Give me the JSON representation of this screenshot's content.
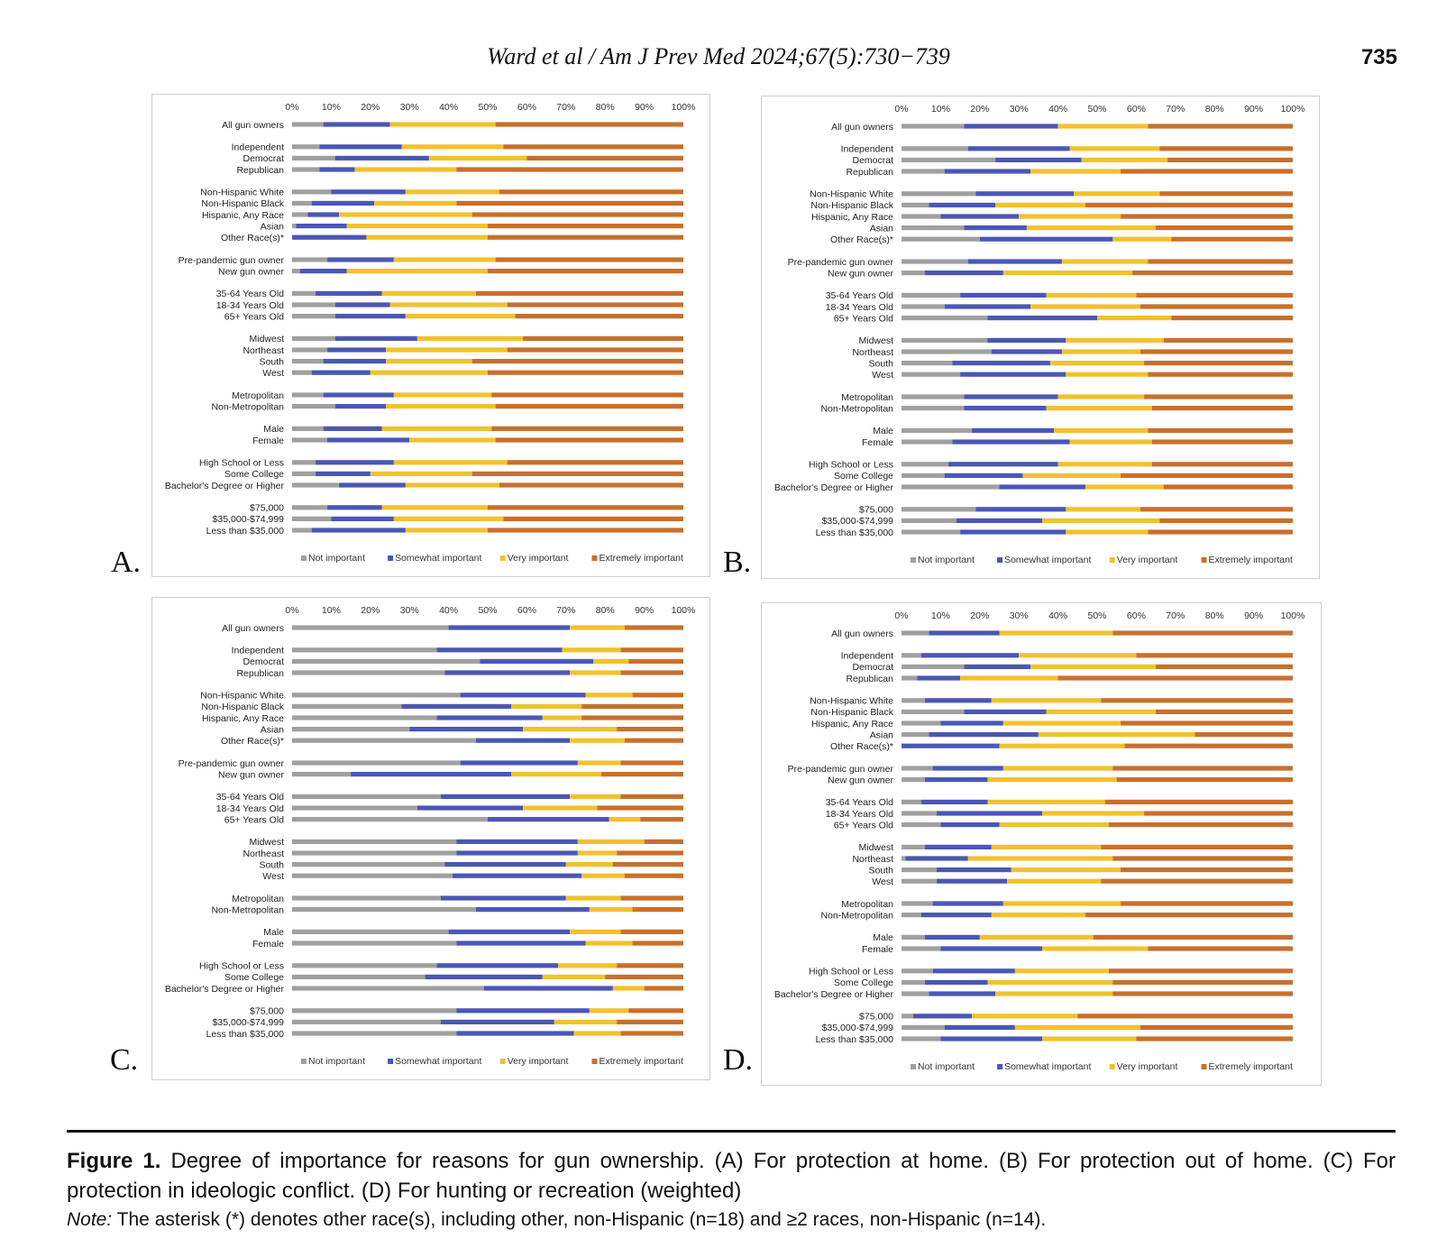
{
  "header": {
    "running_head": "Ward et al / Am J Prev Med  2024;67(5):730−739",
    "page_number": "735"
  },
  "caption": {
    "figure_label": "Figure 1.",
    "text": "Degree of importance for reasons for gun ownership. (A) For protection at home. (B) For protection out of home. (C) For protection in ideologic conflict. (D) For hunting or recreation (weighted)",
    "note_label": "Note:",
    "note_text": "The asterisk (*) denotes other race(s), including other, non-Hispanic (n=18) and ≥2 races, non-Hispanic (n=14)."
  },
  "colors": {
    "not_important": "#a0a0a0",
    "somewhat_important": "#4a57b5",
    "very_important": "#f2c12e",
    "extremely_important": "#c8702c"
  },
  "chart_data": [
    {
      "type": "bar",
      "stacked": "horizontal-100",
      "panel_label": "A.",
      "ticks": [
        "0%",
        "10%",
        "20%",
        "30%",
        "40%",
        "50%",
        "60%",
        "70%",
        "80%",
        "90%",
        "100%"
      ],
      "legend": [
        "Not important",
        "Somewhat important",
        "Very important",
        "Extremely important"
      ],
      "groups": [
        [
          "All gun owners"
        ],
        [
          "Independent",
          "Democrat",
          "Republican"
        ],
        [
          "Non-Hispanic White",
          "Non-Hispanic Black",
          "Hispanic, Any Race",
          "Asian",
          "Other Race(s)*"
        ],
        [
          "Pre-pandemic gun owner",
          "New gun owner"
        ],
        [
          "35-64 Years Old",
          "18-34 Years Old",
          "65+ Years Old"
        ],
        [
          "Midwest",
          "Northeast",
          "South",
          "West"
        ],
        [
          "Metropolitan",
          "Non-Metropolitan"
        ],
        [
          "Male",
          "Female"
        ],
        [
          "High School or Less",
          "Some College",
          "Bachelor's Degree or Higher"
        ],
        [
          "$75,000",
          "$35,000-$74,999",
          "Less than $35,000"
        ]
      ],
      "values": [
        [
          8,
          17,
          27,
          48
        ],
        [
          7,
          21,
          26,
          46
        ],
        [
          11,
          24,
          25,
          40
        ],
        [
          7,
          9,
          26,
          58
        ],
        [
          10,
          19,
          24,
          47
        ],
        [
          5,
          16,
          21,
          58
        ],
        [
          4,
          8,
          34,
          54
        ],
        [
          1,
          13,
          36,
          50
        ],
        [
          0,
          19,
          31,
          50
        ],
        [
          9,
          17,
          26,
          48
        ],
        [
          2,
          12,
          36,
          50
        ],
        [
          6,
          17,
          24,
          53
        ],
        [
          11,
          14,
          30,
          45
        ],
        [
          11,
          18,
          28,
          43
        ],
        [
          11,
          21,
          27,
          41
        ],
        [
          9,
          15,
          31,
          45
        ],
        [
          8,
          16,
          22,
          54
        ],
        [
          5,
          15,
          30,
          50
        ],
        [
          8,
          18,
          25,
          49
        ],
        [
          11,
          13,
          28,
          48
        ],
        [
          8,
          15,
          28,
          49
        ],
        [
          9,
          21,
          22,
          48
        ],
        [
          6,
          20,
          29,
          45
        ],
        [
          6,
          14,
          26,
          54
        ],
        [
          12,
          17,
          24,
          47
        ],
        [
          9,
          14,
          27,
          50
        ],
        [
          10,
          16,
          28,
          46
        ],
        [
          5,
          24,
          21,
          50
        ]
      ]
    },
    {
      "type": "bar",
      "stacked": "horizontal-100",
      "panel_label": "B.",
      "ticks": [
        "0%",
        "10%",
        "20%",
        "30%",
        "40%",
        "50%",
        "60%",
        "70%",
        "80%",
        "90%",
        "100%"
      ],
      "legend": [
        "Not important",
        "Somewhat important",
        "Very important",
        "Extremely important"
      ],
      "groups": [
        [
          "All gun owners"
        ],
        [
          "Independent",
          "Democrat",
          "Republican"
        ],
        [
          "Non-Hispanic White",
          "Non-Hispanic Black",
          "Hispanic, Any Race",
          "Asian",
          "Other Race(s)*"
        ],
        [
          "Pre-pandemic gun owner",
          "New gun owner"
        ],
        [
          "35-64 Years Old",
          "18-34 Years Old",
          "65+ Years Old"
        ],
        [
          "Midwest",
          "Northeast",
          "South",
          "West"
        ],
        [
          "Metropolitan",
          "Non-Metropolitan"
        ],
        [
          "Male",
          "Female"
        ],
        [
          "High School or Less",
          "Some College",
          "Bachelor's Degree or Higher"
        ],
        [
          "$75,000",
          "$35,000-$74,999",
          "Less than $35,000"
        ]
      ],
      "values": [
        [
          16,
          24,
          23,
          37
        ],
        [
          17,
          26,
          23,
          34
        ],
        [
          24,
          22,
          22,
          32
        ],
        [
          11,
          22,
          23,
          44
        ],
        [
          19,
          25,
          22,
          34
        ],
        [
          7,
          17,
          23,
          53
        ],
        [
          10,
          20,
          26,
          44
        ],
        [
          16,
          16,
          33,
          35
        ],
        [
          20,
          34,
          15,
          31
        ],
        [
          17,
          24,
          22,
          37
        ],
        [
          6,
          20,
          33,
          41
        ],
        [
          15,
          22,
          23,
          40
        ],
        [
          11,
          22,
          28,
          39
        ],
        [
          22,
          28,
          19,
          31
        ],
        [
          22,
          20,
          25,
          33
        ],
        [
          23,
          18,
          20,
          39
        ],
        [
          13,
          25,
          24,
          38
        ],
        [
          15,
          27,
          21,
          37
        ],
        [
          16,
          24,
          22,
          38
        ],
        [
          16,
          21,
          27,
          36
        ],
        [
          18,
          21,
          24,
          37
        ],
        [
          13,
          30,
          21,
          36
        ],
        [
          12,
          28,
          24,
          36
        ],
        [
          11,
          20,
          25,
          44
        ],
        [
          25,
          22,
          20,
          33
        ],
        [
          19,
          23,
          19,
          39
        ],
        [
          14,
          22,
          30,
          34
        ],
        [
          15,
          27,
          21,
          37
        ]
      ]
    },
    {
      "type": "bar",
      "stacked": "horizontal-100",
      "panel_label": "C.",
      "ticks": [
        "0%",
        "10%",
        "20%",
        "30%",
        "40%",
        "50%",
        "60%",
        "70%",
        "80%",
        "90%",
        "100%"
      ],
      "legend": [
        "Not important",
        "Somewhat important",
        "Very important",
        "Extremely important"
      ],
      "groups": [
        [
          "All gun owners"
        ],
        [
          "Independent",
          "Democrat",
          "Republican"
        ],
        [
          "Non-Hispanic White",
          "Non-Hispanic Black",
          "Hispanic, Any Race",
          "Asian",
          "Other Race(s)*"
        ],
        [
          "Pre-pandemic gun owner",
          "New gun owner"
        ],
        [
          "35-64 Years Old",
          "18-34 Years Old",
          "65+ Years Old"
        ],
        [
          "Midwest",
          "Northeast",
          "South",
          "West"
        ],
        [
          "Metropolitan",
          "Non-Metropolitan"
        ],
        [
          "Male",
          "Female"
        ],
        [
          "High School or Less",
          "Some College",
          "Bachelor's Degree or Higher"
        ],
        [
          "$75,000",
          "$35,000-$74,999",
          "Less than $35,000"
        ]
      ],
      "values": [
        [
          40,
          31,
          14,
          15
        ],
        [
          37,
          32,
          15,
          16
        ],
        [
          48,
          29,
          9,
          14
        ],
        [
          39,
          32,
          13,
          16
        ],
        [
          43,
          32,
          12,
          13
        ],
        [
          28,
          28,
          18,
          26
        ],
        [
          37,
          27,
          10,
          26
        ],
        [
          30,
          29,
          24,
          17
        ],
        [
          47,
          24,
          14,
          15
        ],
        [
          43,
          30,
          11,
          16
        ],
        [
          15,
          41,
          23,
          21
        ],
        [
          38,
          33,
          13,
          16
        ],
        [
          32,
          27,
          19,
          22
        ],
        [
          50,
          31,
          8,
          11
        ],
        [
          42,
          31,
          17,
          10
        ],
        [
          42,
          31,
          10,
          17
        ],
        [
          39,
          31,
          12,
          18
        ],
        [
          41,
          33,
          11,
          15
        ],
        [
          38,
          32,
          14,
          16
        ],
        [
          47,
          29,
          11,
          13
        ],
        [
          40,
          31,
          13,
          16
        ],
        [
          42,
          33,
          12,
          13
        ],
        [
          37,
          31,
          15,
          17
        ],
        [
          34,
          30,
          16,
          20
        ],
        [
          49,
          33,
          8,
          10
        ],
        [
          42,
          34,
          10,
          14
        ],
        [
          38,
          29,
          16,
          17
        ],
        [
          42,
          30,
          12,
          16
        ]
      ]
    },
    {
      "type": "bar",
      "stacked": "horizontal-100",
      "panel_label": "D.",
      "ticks": [
        "0%",
        "10%",
        "20%",
        "30%",
        "40%",
        "50%",
        "60%",
        "70%",
        "80%",
        "90%",
        "100%"
      ],
      "legend": [
        "Not important",
        "Somewhat important",
        "Very important",
        "Extremely important"
      ],
      "groups": [
        [
          "All gun owners"
        ],
        [
          "Independent",
          "Democrat",
          "Republican"
        ],
        [
          "Non-Hispanic White",
          "Non-Hispanic Black",
          "Hispanic, Any Race",
          "Asian",
          "Other Race(s)*"
        ],
        [
          "Pre-pandemic gun owner",
          "New gun owner"
        ],
        [
          "35-64 Years Old",
          "18-34 Years Old",
          "65+ Years Old"
        ],
        [
          "Midwest",
          "Northeast",
          "South",
          "West"
        ],
        [
          "Metropolitan",
          "Non-Metropolitan"
        ],
        [
          "Male",
          "Female"
        ],
        [
          "High School or Less",
          "Some College",
          "Bachelor's Degree or Higher"
        ],
        [
          "$75,000",
          "$35,000-$74,999",
          "Less than $35,000"
        ]
      ],
      "values": [
        [
          7,
          18,
          29,
          46
        ],
        [
          5,
          25,
          30,
          40
        ],
        [
          16,
          17,
          32,
          35
        ],
        [
          4,
          11,
          25,
          60
        ],
        [
          6,
          17,
          28,
          49
        ],
        [
          16,
          21,
          28,
          35
        ],
        [
          10,
          16,
          30,
          44
        ],
        [
          7,
          28,
          40,
          25
        ],
        [
          0,
          25,
          32,
          43
        ],
        [
          8,
          18,
          28,
          46
        ],
        [
          6,
          16,
          33,
          45
        ],
        [
          5,
          17,
          30,
          48
        ],
        [
          9,
          27,
          26,
          38
        ],
        [
          10,
          15,
          28,
          47
        ],
        [
          6,
          17,
          28,
          49
        ],
        [
          1,
          16,
          37,
          46
        ],
        [
          9,
          19,
          28,
          44
        ],
        [
          9,
          18,
          24,
          49
        ],
        [
          8,
          18,
          30,
          44
        ],
        [
          5,
          18,
          24,
          53
        ],
        [
          6,
          14,
          29,
          51
        ],
        [
          10,
          26,
          27,
          37
        ],
        [
          8,
          21,
          24,
          47
        ],
        [
          6,
          16,
          32,
          46
        ],
        [
          7,
          17,
          30,
          46
        ],
        [
          3,
          15,
          27,
          55
        ],
        [
          11,
          18,
          32,
          39
        ],
        [
          10,
          26,
          24,
          40
        ]
      ]
    }
  ]
}
